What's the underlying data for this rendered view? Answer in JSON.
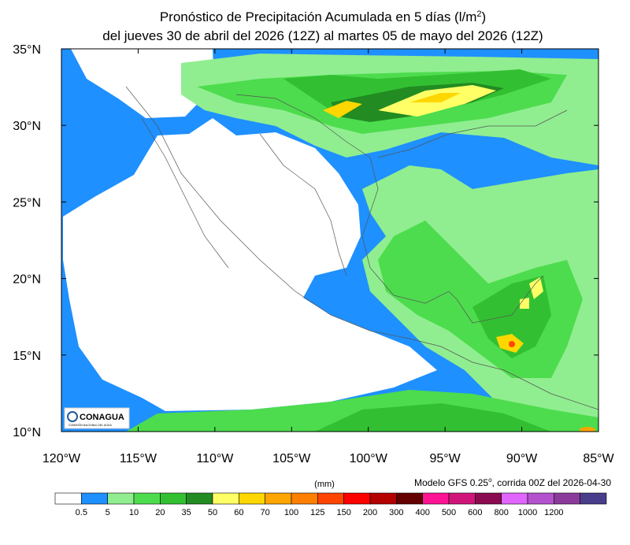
{
  "header": {
    "title_line1": "Pronóstico de Precipitación Acumulada en 5 días (l/m",
    "title_sup": "2",
    "title_close": ")",
    "title_line2": "del jueves 30 de abril del 2026 (12Z) al martes  05 de mayo del 2026 (12Z)"
  },
  "map": {
    "lat_labels": [
      "35°N",
      "30°N",
      "25°N",
      "20°N",
      "15°N",
      "10°N"
    ],
    "lon_labels": [
      "120°W",
      "115°W",
      "110°W",
      "105°W",
      "100°W",
      "95°W",
      "90°W",
      "85°W"
    ],
    "logo": "CONAGUA",
    "logo_sub": "COMISIÓN NACIONAL DEL AGUA"
  },
  "legend": {
    "unit": "(mm)",
    "model_note_a": "Modelo GFS 0.25",
    "model_note_sup": "o",
    "model_note_b": ", corrida 00Z del 2026-04-30",
    "levels": [
      0.5,
      5,
      10,
      20,
      35,
      50,
      60,
      70,
      100,
      125,
      150,
      200,
      300,
      400,
      500,
      600,
      800,
      1000,
      1200
    ],
    "colors": [
      "#ffffff",
      "#1e90ff",
      "#90ee90",
      "#4ddc4d",
      "#32c032",
      "#228b22",
      "#ffff66",
      "#ffd700",
      "#ffa500",
      "#ff7f00",
      "#ff4500",
      "#ff0000",
      "#b40000",
      "#640000",
      "#ff1493",
      "#d0157a",
      "#8b0a50",
      "#e066ff",
      "#b452cd",
      "#8b3a9b",
      "#483d8b"
    ]
  }
}
